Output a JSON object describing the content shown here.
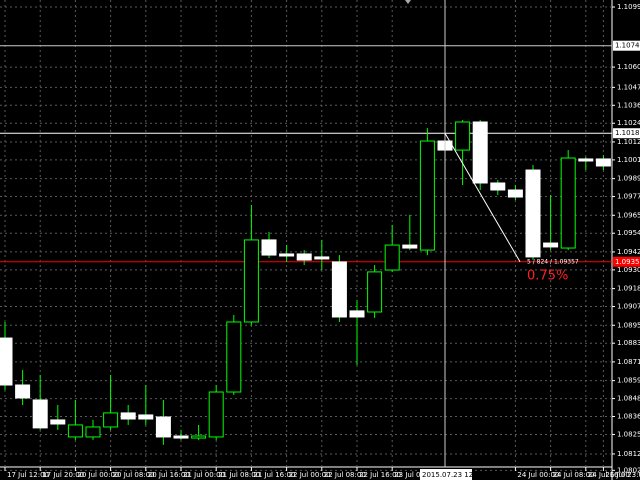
{
  "chart_data": {
    "type": "candlestick",
    "categories": [
      "17 Jul 12:00",
      null,
      "17 Jul 20:00",
      null,
      "20 Jul 00:00",
      null,
      "20 Jul 08:00",
      null,
      "20 Jul 16:00",
      null,
      "21 Jul 00:00",
      null,
      "21 Jul 08:00",
      null,
      "21 Jul 16:00",
      null,
      "22 Jul 00:00",
      null,
      "22 Jul 08:00",
      null,
      "22 Jul 16:00",
      null,
      "23 Jul 00:00",
      null,
      null,
      "2015.07.23 12:00",
      null,
      null,
      null,
      "24 Jul 00:00",
      null,
      "24 Jul 08:00",
      null,
      "24 Jul 16:00",
      "26 Jul 23:00"
    ],
    "open": [
      1.08868,
      1.08567,
      1.08471,
      1.08343,
      1.08234,
      1.08234,
      1.08298,
      1.08388,
      1.08375,
      1.08362,
      1.0824,
      1.08227,
      1.08234,
      1.08522,
      1.08971,
      1.09497,
      1.09407,
      1.09407,
      1.09388,
      1.09356,
      1.09042,
      1.09035,
      1.09304,
      1.09464,
      1.09432,
      1.10131,
      1.10073,
      1.10253,
      1.09862,
      1.09817,
      1.09945,
      1.09477,
      1.09445,
      1.10016,
      1.10016
    ],
    "high": [
      1.08971,
      1.08663,
      1.08631,
      1.08439,
      1.08471,
      1.08343,
      1.08631,
      1.08439,
      1.08567,
      1.08471,
      1.08279,
      1.08311,
      1.08567,
      1.09016,
      1.09721,
      1.09548,
      1.09464,
      1.09432,
      1.09497,
      1.094,
      1.09112,
      1.09336,
      1.09593,
      1.09657,
      1.10214,
      1.10214,
      1.10266,
      1.10266,
      1.09881,
      1.09849,
      1.09977,
      1.09785,
      1.10073,
      1.10029,
      1.10041
    ],
    "low": [
      1.08535,
      1.08439,
      1.08279,
      1.08279,
      1.08215,
      1.08215,
      1.08279,
      1.08311,
      1.08311,
      1.08183,
      1.08215,
      1.08215,
      1.08215,
      1.08503,
      1.08952,
      1.09381,
      1.09356,
      1.09336,
      1.09304,
      1.08971,
      1.08695,
      1.08997,
      1.09292,
      1.09432,
      1.094,
      1.10041,
      1.09849,
      1.09817,
      1.09785,
      1.09753,
      1.09368,
      1.09432,
      1.09432,
      1.09945,
      1.09945
    ],
    "close": [
      1.08567,
      1.08484,
      1.08292,
      1.08317,
      1.08311,
      1.08298,
      1.08388,
      1.08349,
      1.08349,
      1.08234,
      1.08227,
      1.0824,
      1.08522,
      1.08971,
      1.09497,
      1.094,
      1.09394,
      1.09368,
      1.09375,
      1.09003,
      1.09003,
      1.09292,
      1.09464,
      1.09445,
      1.10131,
      1.10073,
      1.10253,
      1.09862,
      1.09817,
      1.09772,
      1.09388,
      1.09452,
      1.10022,
      1.10003,
      1.09971
    ],
    "bull_color": "#00ff00",
    "bear_color": "#ffffff",
    "wick_color": "#00ff00",
    "ylim": [
      1.07958,
      1.11035
    ],
    "yticks": [
      {
        "value": 1.1099,
        "label": "1.10990"
      },
      1.10605,
      1.10475,
      {
        "value": 1.1036,
        "label": "1.10360"
      },
      1.10245,
      1.10125,
      {
        "value": 1.1001,
        "label": "1.10010"
      },
      {
        "value": 1.0989,
        "label": "1.09890"
      },
      1.09775,
      1.09655,
      {
        "value": 1.0954,
        "label": "1.09540"
      },
      {
        "value": 1.0942,
        "label": "1.09420"
      },
      1.09305,
      1.09185,
      {
        "value": 1.0907,
        "label": "1.09070"
      },
      {
        "value": 1.0895,
        "label": "1.08950"
      },
      1.08835,
      1.08715,
      1.08595,
      {
        "value": 1.0848,
        "label": "1.08480"
      },
      1.08365,
      {
        "value": 1.0825,
        "label": "1.08250"
      },
      1.08125,
      {
        "value": 1.0802,
        "label": "1.08020"
      }
    ],
    "grid": true,
    "crosshair": {
      "value": 1.10742,
      "label": "1.10742"
    },
    "price_lines": [
      {
        "value": 1.10181,
        "label": "1.10181",
        "color": "#ffffff"
      },
      {
        "value": 1.09357,
        "label": "1.09357",
        "color": "#ff0000"
      }
    ],
    "ruler": {
      "text": "5 / 824 / 1.09357",
      "percent": "0.75%"
    }
  }
}
